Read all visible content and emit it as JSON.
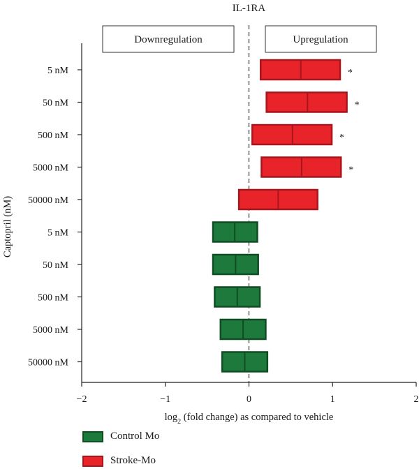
{
  "chart_data": {
    "type": "floating-bar",
    "title": "IL-1RA",
    "xlabel": "log2 (fold change) as compared to vehicle",
    "xlabel_main": "log",
    "xlabel_sub": "2",
    "xlabel_rest": " (fold change) as compared to vehicle",
    "ylabel": "Captopril (nM)",
    "xlim": [
      -2,
      2
    ],
    "xticks": [
      -2,
      -1,
      0,
      1,
      2
    ],
    "xtick_labels": [
      "−2",
      "−1",
      "0",
      "1",
      "2"
    ],
    "region_labels": {
      "left": "Downregulation",
      "right": "Upregulation"
    },
    "categories": [
      "5 nM",
      "50 nM",
      "500 nM",
      "5000 nM",
      "50000 nM",
      "5 nM",
      "50 nM",
      "500 nM",
      "5000 nM",
      "50000 nM"
    ],
    "series": [
      {
        "name": "Stroke-Mo",
        "color": "#e8242a",
        "edge": "#a8151c",
        "rows": [
          0,
          1,
          2,
          3,
          4
        ],
        "low": [
          0.14,
          0.21,
          0.04,
          0.15,
          -0.12
        ],
        "mid": [
          0.62,
          0.7,
          0.52,
          0.63,
          0.35
        ],
        "high": [
          1.09,
          1.17,
          0.99,
          1.1,
          0.82
        ],
        "significant": [
          true,
          true,
          true,
          true,
          false
        ]
      },
      {
        "name": "Control Mo",
        "color": "#1e7a3c",
        "edge": "#0f4d22",
        "rows": [
          5,
          6,
          7,
          8,
          9
        ],
        "low": [
          -0.43,
          -0.43,
          -0.41,
          -0.34,
          -0.32
        ],
        "mid": [
          -0.17,
          -0.16,
          -0.14,
          -0.07,
          -0.05
        ],
        "high": [
          0.1,
          0.11,
          0.13,
          0.2,
          0.22
        ],
        "significant": [
          false,
          false,
          false,
          false,
          false
        ]
      }
    ],
    "significance_marker": "*",
    "legend": [
      "Control Mo",
      "Stroke-Mo"
    ],
    "legend_position": "bottom-left",
    "reference_line": {
      "x": 0,
      "style": "dashed"
    }
  },
  "legend_colors": {
    "Control Mo": {
      "fill": "#1e7a3c",
      "edge": "#0f4d22"
    },
    "Stroke-Mo": {
      "fill": "#e8242a",
      "edge": "#a8151c"
    }
  }
}
